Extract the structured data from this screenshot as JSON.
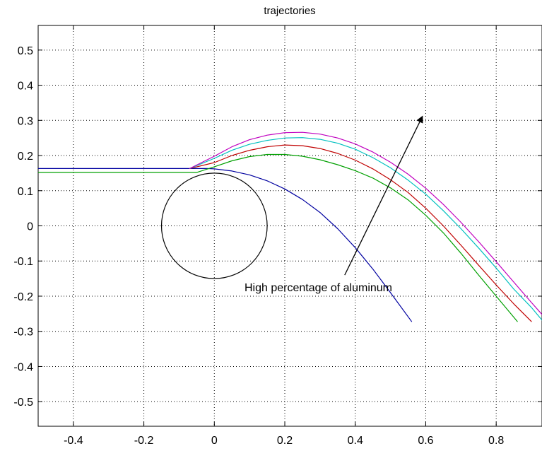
{
  "chart_data": {
    "type": "line",
    "title": "trajectories",
    "xlabel": "",
    "ylabel": "",
    "xlim": [
      -0.5,
      0.93
    ],
    "ylim": [
      -0.57,
      0.57
    ],
    "grid": true,
    "x_ticks": [
      -0.4,
      -0.2,
      0,
      0.2,
      0.4,
      0.6,
      0.8
    ],
    "x_tick_labels": [
      "-0.4",
      "-0.2",
      "0",
      "0.2",
      "0.4",
      "0.6",
      "0.8"
    ],
    "y_ticks": [
      0.5,
      0.4,
      0.3,
      0.2,
      0.1,
      0,
      -0.1,
      -0.2,
      -0.3,
      -0.4,
      -0.5
    ],
    "y_tick_labels": [
      "0.5",
      "0.4",
      "0.3",
      "0.2",
      "0.1",
      "0",
      "-0.1",
      "-0.2",
      "-0.3",
      "-0.4",
      "-0.5"
    ],
    "circle": {
      "center": [
        0,
        0
      ],
      "radius": 0.15,
      "color": "#000000"
    },
    "series": [
      {
        "color": "#0000a0",
        "x": [
          -0.5,
          -0.02,
          0.0,
          0.05,
          0.1,
          0.15,
          0.2,
          0.25,
          0.3,
          0.35,
          0.4,
          0.45,
          0.5,
          0.56
        ],
        "y": [
          0.163,
          0.163,
          0.162,
          0.156,
          0.145,
          0.128,
          0.105,
          0.075,
          0.038,
          -0.008,
          -0.062,
          -0.123,
          -0.19,
          -0.272
        ]
      },
      {
        "color": "#00a000",
        "x": [
          -0.5,
          -0.05,
          0.0,
          0.05,
          0.1,
          0.15,
          0.2,
          0.25,
          0.3,
          0.35,
          0.4,
          0.45,
          0.5,
          0.55,
          0.6,
          0.65,
          0.7,
          0.75,
          0.8,
          0.86
        ],
        "y": [
          0.152,
          0.152,
          0.168,
          0.185,
          0.197,
          0.203,
          0.203,
          0.198,
          0.188,
          0.174,
          0.157,
          0.136,
          0.108,
          0.074,
          0.03,
          -0.02,
          -0.078,
          -0.14,
          -0.2,
          -0.272
        ]
      },
      {
        "color": "#c00000",
        "x": [
          -0.07,
          0.0,
          0.05,
          0.1,
          0.15,
          0.2,
          0.25,
          0.3,
          0.35,
          0.4,
          0.45,
          0.5,
          0.55,
          0.6,
          0.65,
          0.7,
          0.75,
          0.8,
          0.85,
          0.9
        ],
        "y": [
          0.163,
          0.18,
          0.2,
          0.215,
          0.225,
          0.23,
          0.228,
          0.22,
          0.206,
          0.187,
          0.162,
          0.131,
          0.095,
          0.05,
          0.0,
          -0.055,
          -0.112,
          -0.168,
          -0.222,
          -0.272
        ]
      },
      {
        "color": "#00c0c0",
        "x": [
          -0.07,
          0.0,
          0.05,
          0.1,
          0.15,
          0.2,
          0.25,
          0.3,
          0.35,
          0.4,
          0.45,
          0.5,
          0.55,
          0.6,
          0.65,
          0.7,
          0.75,
          0.8,
          0.85,
          0.9,
          0.93
        ],
        "y": [
          0.163,
          0.192,
          0.215,
          0.232,
          0.243,
          0.25,
          0.251,
          0.246,
          0.235,
          0.218,
          0.194,
          0.165,
          0.13,
          0.09,
          0.043,
          -0.008,
          -0.063,
          -0.12,
          -0.18,
          -0.232,
          -0.268
        ]
      },
      {
        "color": "#c000c0",
        "x": [
          -0.07,
          0.0,
          0.05,
          0.1,
          0.15,
          0.2,
          0.25,
          0.3,
          0.35,
          0.4,
          0.45,
          0.5,
          0.55,
          0.6,
          0.65,
          0.7,
          0.75,
          0.8,
          0.85,
          0.9,
          0.93
        ],
        "y": [
          0.163,
          0.198,
          0.225,
          0.245,
          0.258,
          0.265,
          0.266,
          0.261,
          0.25,
          0.233,
          0.21,
          0.181,
          0.147,
          0.107,
          0.061,
          0.01,
          -0.045,
          -0.102,
          -0.16,
          -0.218,
          -0.252
        ]
      }
    ],
    "annotation": {
      "text": "High percentage of aluminum",
      "arrow_from": [
        0.37,
        -0.14
      ],
      "arrow_to": [
        0.59,
        0.31
      ]
    }
  }
}
